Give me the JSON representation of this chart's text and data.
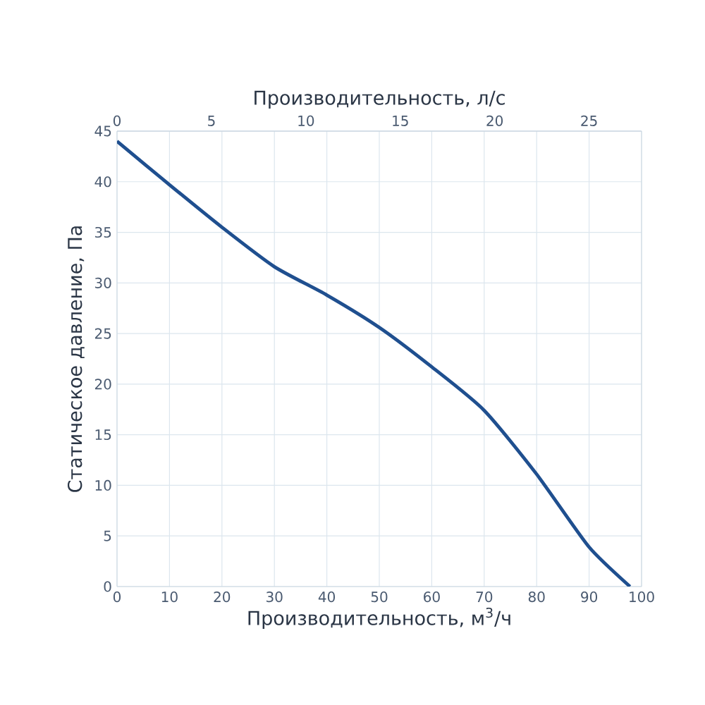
{
  "chart_data": {
    "type": "line",
    "xlabel": "Производительность, м$^{3}$/ч",
    "x2label": "Производительность, л/с",
    "ylabel": "Статическое давление, Па",
    "x": [
      0,
      10,
      20,
      30,
      40,
      50,
      60,
      70,
      80,
      90,
      97.8
    ],
    "series": [
      {
        "color": "#1f4f8f",
        "values": [
          44,
          39.7,
          35.5,
          31.6,
          28.8,
          25.6,
          21.7,
          17.4,
          11.1,
          3.9,
          0
        ]
      }
    ],
    "xlim": [
      0,
      100
    ],
    "xticks": [
      0,
      10,
      20,
      30,
      40,
      50,
      60,
      70,
      80,
      90,
      100
    ],
    "x2lim": [
      0,
      27.78
    ],
    "x2ticks": [
      0,
      5,
      10,
      15,
      20,
      25
    ],
    "ylim": [
      0,
      45
    ],
    "yticks": [
      0,
      5,
      10,
      15,
      20,
      25,
      30,
      35,
      40,
      45
    ],
    "grid": true,
    "marker": "none",
    "line_style": "solid"
  }
}
